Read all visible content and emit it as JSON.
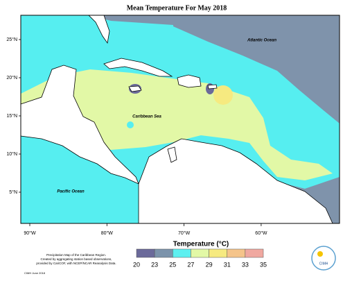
{
  "title": "Mean Temperature For May 2018",
  "labels": {
    "atlantic": "Atlantic Ocean",
    "caribbean": "Caribbean Sea",
    "pacific": "Pacific Ocean"
  },
  "latitude_ticks": [
    {
      "value": 25,
      "label": "25°N"
    },
    {
      "value": 20,
      "label": "20°N"
    },
    {
      "value": 15,
      "label": "15°N"
    },
    {
      "value": 10,
      "label": "10°N"
    },
    {
      "value": 5,
      "label": "5°N"
    }
  ],
  "longitude_ticks": [
    {
      "value": 90,
      "label": "90°W"
    },
    {
      "value": 80,
      "label": "80°W"
    },
    {
      "value": 70,
      "label": "70°W"
    },
    {
      "value": 60,
      "label": "60°W"
    }
  ],
  "legend": {
    "title": "Temperature (°C)",
    "bounds": [
      20,
      23,
      25,
      27,
      29,
      31,
      33,
      35
    ],
    "colors": [
      "#6b6a9a",
      "#7c93ab",
      "#5ef0f0",
      "#e2f8a6",
      "#f6ea80",
      "#f5c48a",
      "#f0a8a0"
    ]
  },
  "footer": {
    "line1": "Precipitation Map of the Caribbean Region.",
    "line2": "Created by aggregating station based observations,",
    "line3": "provided by CariCOF, with NCEP/NCAR Reanalysis Data.",
    "credit": "CIMH June 2018"
  },
  "logo": "CIMH"
}
